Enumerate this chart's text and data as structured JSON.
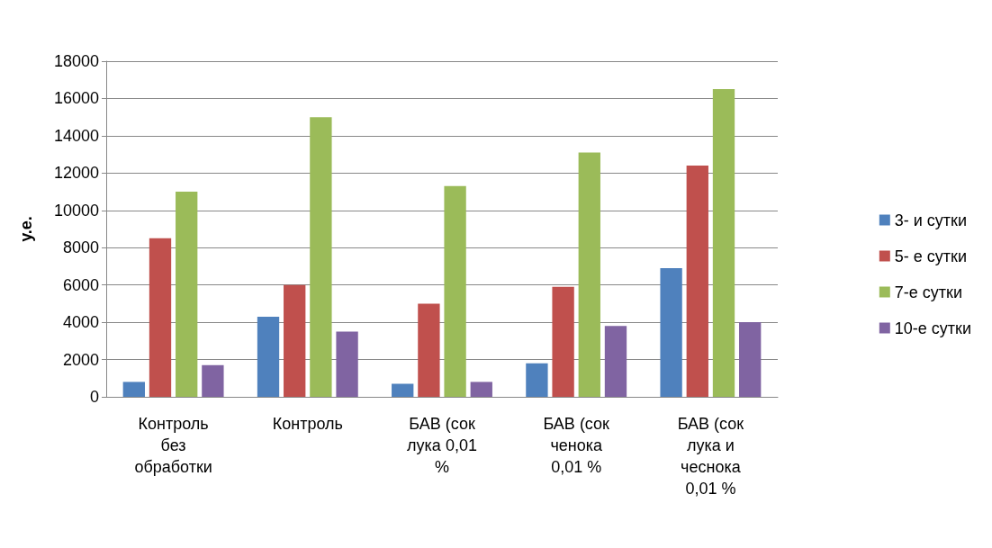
{
  "chart_data": {
    "type": "bar",
    "ylabel": "у.е.",
    "categories": [
      "Контроль без обработки",
      "Контроль",
      "БАВ (сок лука 0,01 %",
      "БАВ (сок ченока 0,01 %",
      "БАВ (сок лука и чеснока 0,01 %"
    ],
    "series": [
      {
        "name": "3- и сутки",
        "color": "#4f81bd",
        "values": [
          800,
          4300,
          700,
          1800,
          6900
        ]
      },
      {
        "name": "5- е сутки",
        "color": "#c0504d",
        "values": [
          8500,
          6000,
          5000,
          5900,
          12400
        ]
      },
      {
        "name": "7-е сутки",
        "color": "#9bbb59",
        "values": [
          11000,
          15000,
          11300,
          13100,
          16500
        ]
      },
      {
        "name": "10-е сутки",
        "color": "#8064a2",
        "values": [
          1700,
          3500,
          800,
          3800,
          4000
        ]
      }
    ],
    "ylim": [
      0,
      18000
    ],
    "yticks": [
      0,
      2000,
      4000,
      6000,
      8000,
      10000,
      12000,
      14000,
      16000,
      18000
    ],
    "grid": "y",
    "legend": "right"
  }
}
